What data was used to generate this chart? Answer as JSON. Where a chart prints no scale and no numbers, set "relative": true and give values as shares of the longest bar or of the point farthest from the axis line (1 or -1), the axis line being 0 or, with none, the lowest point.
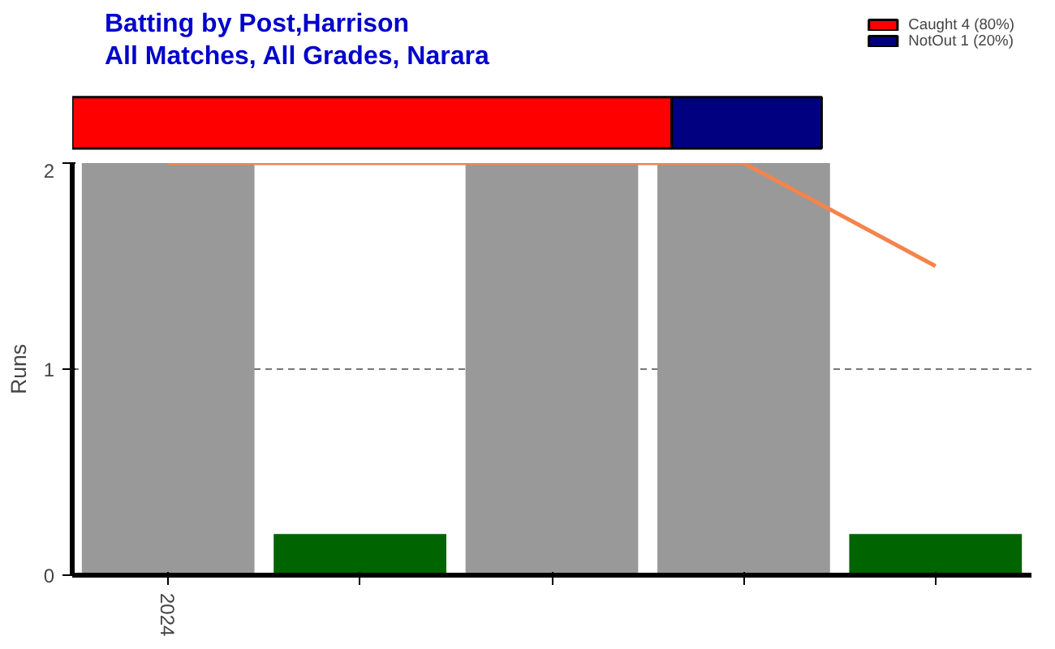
{
  "chart_data": [
    {
      "type": "bar",
      "orientation": "horizontal",
      "stacked": true,
      "relative": true,
      "title": "Batting by Post,Harrison",
      "subtitle": "All Matches, All Grades, Narara",
      "categories": [
        null
      ],
      "legend": "top right",
      "series": [
        {
          "name": "Caught 4 (80%)",
          "color": "#ff0000",
          "values": [
            0.8
          ]
        },
        {
          "name": "NotOut 1 (20%)",
          "color": "#000080",
          "values": [
            0.2
          ]
        }
      ]
    },
    {
      "type": "bar",
      "ylabel": "Runs",
      "categories": [
        "2024",
        null,
        null,
        null,
        null
      ],
      "ylim": [
        0,
        2
      ],
      "yticks": [
        0,
        1,
        2
      ],
      "grid": "y",
      "series": [
        {
          "type": "bar",
          "colors": [
            "#999999",
            "#006400",
            "#999999",
            "#999999",
            "#006400"
          ],
          "values": [
            2,
            0.2,
            2,
            2,
            0.2
          ]
        },
        {
          "type": "line",
          "color": "#f4844c",
          "values": [
            2,
            2,
            2,
            2,
            1.5
          ]
        }
      ]
    }
  ]
}
